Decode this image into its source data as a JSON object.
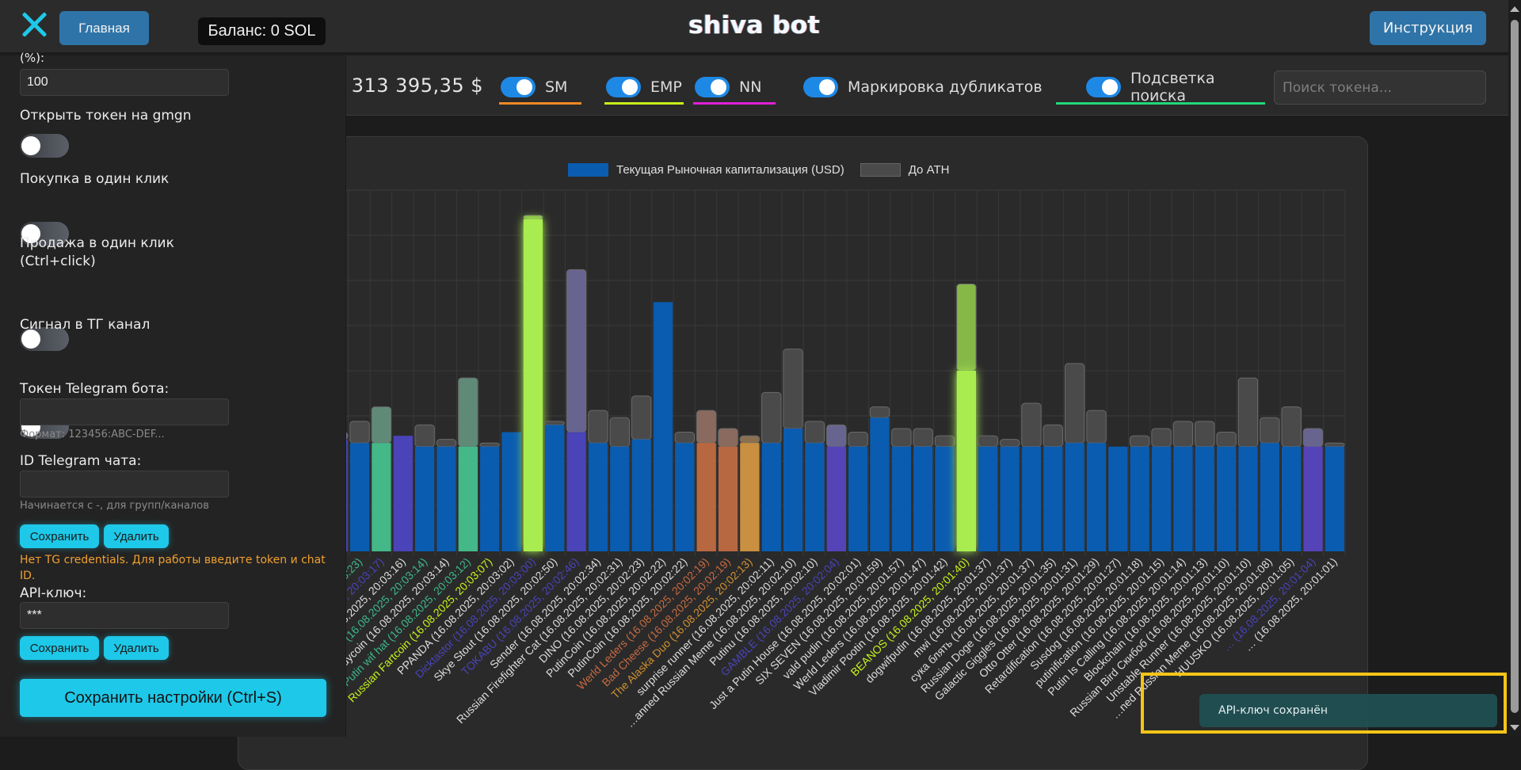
{
  "header": {
    "title": "shiva bot",
    "home_label": "Главная",
    "balance": "Баланс: 0 SOL",
    "instructions_label": "Инструкция"
  },
  "filters": {
    "market_cap_text": ": 313 395,35 $",
    "toggles": [
      {
        "label": "SM",
        "on": true,
        "underline": "#f08a24"
      },
      {
        "label": "EMP",
        "on": true,
        "underline": "#c6f21a"
      },
      {
        "label": "NN",
        "on": true,
        "underline": "#e020d8"
      },
      {
        "label": "Маркировка дубликатов",
        "on": true,
        "underline": ""
      },
      {
        "label": "Подсветка поиска",
        "on": true,
        "underline": "#22d87a"
      }
    ],
    "search_placeholder": "Поиск токена...",
    "search_value": ""
  },
  "sidebar": {
    "cut_label": "(%):",
    "percent_value": "100",
    "open_gmgn_label": "Открыть токен на gmgn",
    "open_gmgn_on": false,
    "one_click_buy_label": "Покупка в один клик",
    "one_click_buy_on": false,
    "one_click_sell_label": "Продажа в один клик",
    "one_click_sell_label2": "(Ctrl+click)",
    "one_click_sell_on": false,
    "tg_signal_label": "Сигнал в ТГ канал",
    "tg_signal_on": false,
    "tg_token_label": "Токен Telegram бота:",
    "tg_token_value": "",
    "tg_token_hint": "Формат: 123456:ABC-DEF...",
    "tg_chat_label": "ID Telegram чата:",
    "tg_chat_value": "",
    "tg_chat_hint": "Начинается с -, для групп/каналов",
    "save_label": "Сохранить",
    "delete_label": "Удалить",
    "tg_warning": "Нет TG credentials. Для работы введите token и chat ID.",
    "api_key_label": "API-ключ:",
    "api_key_value": "***",
    "save_settings_label": "Сохранить настройки (Ctrl+S)"
  },
  "toast": {
    "message": "API-ключ сохранён"
  },
  "colors": {
    "accent_cyan": "#1ec8e8",
    "button_blue": "#2f74a8",
    "bar_default": "#0a5cb0",
    "ath": "#4a4a4a",
    "highlight_frame": "#f5c518"
  },
  "chart_data": {
    "type": "bar",
    "stacked": true,
    "title": "",
    "xlabel": "",
    "ylabel": "",
    "y_axis_labels_visible": false,
    "grid": true,
    "legend_position": "top-center",
    "legend": [
      {
        "name": "Текущая Рыночная капитализация (USD)",
        "color": "#0a5cb0"
      },
      {
        "name": "До ATH",
        "color": "#4a4a4a"
      }
    ],
    "ylim": [
      0,
      100
    ],
    "units": "relative (no y-axis ticks shown)",
    "categories": [
      {
        "label": "…:23)",
        "mc": 31,
        "ath": 2,
        "color": "#4a44b8",
        "label_color": "#dddddd"
      },
      {
        "label": "… (16.08.2025, 20:03:23)",
        "mc": 30,
        "ath": 6,
        "color": "#0a5cb0",
        "label_color": "#3db88a"
      },
      {
        "label": "… (16.08.2025, 20:03:17)",
        "mc": 30,
        "ath": 10,
        "color": "#44b888",
        "label_color": "#4a44b8"
      },
      {
        "label": "…uing (16.08.2025, 20:03:16)",
        "mc": 32,
        "ath": 0,
        "color": "#4a44b8",
        "label_color": "#dddddd"
      },
      {
        "label": "… Fartcoin (16.08.2025, 20:03:14)",
        "mc": 29,
        "ath": 6,
        "color": "#0a5cb0",
        "label_color": "#3db88a"
      },
      {
        "label": "daddycoin (16.08.2025, 20:03:14)",
        "mc": 29,
        "ath": 2,
        "color": "#0a5cb0",
        "label_color": "#dddddd"
      },
      {
        "label": "Putin wif hat (16.08.2025, 20:03:12)",
        "mc": 29,
        "ath": 19,
        "color": "#44b888",
        "label_color": "#3db88a"
      },
      {
        "label": "Russian Fartcoin (16.08.2025, 20:03:07)",
        "mc": 29,
        "ath": 1,
        "color": "#0a5cb0",
        "label_color": "#c6f21a"
      },
      {
        "label": "PPANDA (16.08.2025, 20:03:02)",
        "mc": 33,
        "ath": 0,
        "color": "#0a5cb0",
        "label_color": "#dddddd"
      },
      {
        "label": "Dicktastor (16.08.2025, 20:03:00)",
        "mc": 92,
        "ath": 1,
        "color": "#a8ec50",
        "label_color": "#4a44b8"
      },
      {
        "label": "Skye Stout (16.08.2025, 20:02:50)",
        "mc": 35,
        "ath": 1,
        "color": "#0a5cb0",
        "label_color": "#dddddd"
      },
      {
        "label": "TOKABU (16.08.2025, 20:02:46)",
        "mc": 33,
        "ath": 45,
        "color": "#4a44b8",
        "label_color": "#4a44b8"
      },
      {
        "label": "Sender (16.08.2025, 20:02:34)",
        "mc": 30,
        "ath": 9,
        "color": "#0a5cb0",
        "label_color": "#dddddd"
      },
      {
        "label": "Russian Firefighter Cat (16.08.2025, 20:02:31)",
        "mc": 29,
        "ath": 8,
        "color": "#0a5cb0",
        "label_color": "#dddddd"
      },
      {
        "label": "DINO (16.08.2025, 20:02:23)",
        "mc": 31,
        "ath": 12,
        "color": "#0a5cb0",
        "label_color": "#dddddd"
      },
      {
        "label": "PutinCoin (16.08.2025, 20:02:22)",
        "mc": 69,
        "ath": 0,
        "color": "#0a5cb0",
        "label_color": "#dddddd"
      },
      {
        "label": "PutinCoin (16.08.2025, 20:02:22)",
        "mc": 30,
        "ath": 3,
        "color": "#0a5cb0",
        "label_color": "#dddddd"
      },
      {
        "label": "Werld Leders (16.08.2025, 20:02:19)",
        "mc": 30,
        "ath": 9,
        "color": "#b86840",
        "label_color": "#c86a40"
      },
      {
        "label": "Bad Cheese (16.08.2025, 20:02:19)",
        "mc": 29,
        "ath": 5,
        "color": "#b86840",
        "label_color": "#c86a40"
      },
      {
        "label": "The Alaska Duo (16.08.2025, 20:02:13)",
        "mc": 30,
        "ath": 2,
        "color": "#c89040",
        "label_color": "#d09030"
      },
      {
        "label": "surprise runner (16.08.2025, 20:02:11)",
        "mc": 30,
        "ath": 14,
        "color": "#0a5cb0",
        "label_color": "#dddddd"
      },
      {
        "label": "…anned Russian Meme (16.08.2025, 20:02:10)",
        "mc": 34,
        "ath": 22,
        "color": "#0a5cb0",
        "label_color": "#dddddd"
      },
      {
        "label": "Putinu (16.08.2025, 20:02:10)",
        "mc": 30,
        "ath": 6,
        "color": "#0a5cb0",
        "label_color": "#dddddd"
      },
      {
        "label": "GAMBLE (16.08.2025, 20:02:04)",
        "mc": 29,
        "ath": 6,
        "color": "#5544b8",
        "label_color": "#4a44b8"
      },
      {
        "label": "Just a Putin House (16.08.2025, 20:02:01)",
        "mc": 29,
        "ath": 4,
        "color": "#0a5cb0",
        "label_color": "#dddddd"
      },
      {
        "label": "SIX SEVEN (16.08.2025, 20:01:59)",
        "mc": 37,
        "ath": 3,
        "color": "#0a5cb0",
        "label_color": "#dddddd"
      },
      {
        "label": "vald pudin (16.08.2025, 20:01:57)",
        "mc": 29,
        "ath": 5,
        "color": "#0a5cb0",
        "label_color": "#dddddd"
      },
      {
        "label": "Werld Leders (16.08.2025, 20:01:47)",
        "mc": 29,
        "ath": 5,
        "color": "#0a5cb0",
        "label_color": "#dddddd"
      },
      {
        "label": "Vladimir Pootin (16.08.2025, 20:01:42)",
        "mc": 29,
        "ath": 3,
        "color": "#0a5cb0",
        "label_color": "#dddddd"
      },
      {
        "label": "BEANOS (16.08.2025, 20:01:40)",
        "mc": 50,
        "ath": 24,
        "color": "#a8ec50",
        "label_color": "#c6f21a"
      },
      {
        "label": "dogwifputin (16.08.2025, 20:01:37)",
        "mc": 29,
        "ath": 3,
        "color": "#0a5cb0",
        "label_color": "#dddddd"
      },
      {
        "label": "mwi (16.08.2025, 20:01:37)",
        "mc": 29,
        "ath": 2,
        "color": "#0a5cb0",
        "label_color": "#dddddd"
      },
      {
        "label": "сука блять (16.08.2025, 20:01:37)",
        "mc": 29,
        "ath": 12,
        "color": "#0a5cb0",
        "label_color": "#dddddd"
      },
      {
        "label": "Russian Doge (16.08.2025, 20:01:35)",
        "mc": 29,
        "ath": 6,
        "color": "#0a5cb0",
        "label_color": "#dddddd"
      },
      {
        "label": "Galactic Giggles (16.08.2025, 20:01:31)",
        "mc": 30,
        "ath": 22,
        "color": "#0a5cb0",
        "label_color": "#dddddd"
      },
      {
        "label": "Otto Otter (16.08.2025, 20:01:29)",
        "mc": 30,
        "ath": 9,
        "color": "#0a5cb0",
        "label_color": "#dddddd"
      },
      {
        "label": "Retardification (16.08.2025, 20:01:27)",
        "mc": 29,
        "ath": 0,
        "color": "#0a5cb0",
        "label_color": "#dddddd"
      },
      {
        "label": "Susdog (16.08.2025, 20:01:18)",
        "mc": 29,
        "ath": 3,
        "color": "#0a5cb0",
        "label_color": "#dddddd"
      },
      {
        "label": "putinification (16.08.2025, 20:01:15)",
        "mc": 29,
        "ath": 5,
        "color": "#0a5cb0",
        "label_color": "#dddddd"
      },
      {
        "label": "Putin Is Calling (16.08.2025, 20:01:14)",
        "mc": 29,
        "ath": 7,
        "color": "#0a5cb0",
        "label_color": "#dddddd"
      },
      {
        "label": "Blockchain (16.08.2025, 20:01:13)",
        "mc": 29,
        "ath": 7,
        "color": "#0a5cb0",
        "label_color": "#dddddd"
      },
      {
        "label": "Russian Bird Скибоб (16.08.2025, 20:01:10)",
        "mc": 29,
        "ath": 4,
        "color": "#0a5cb0",
        "label_color": "#dddddd"
      },
      {
        "label": "Unstable Runner (16.08.2025, 20:01:10)",
        "mc": 29,
        "ath": 19,
        "color": "#0a5cb0",
        "label_color": "#dddddd"
      },
      {
        "label": "…ned Russian Meme (16.08.2025, 20:01:08)",
        "mc": 30,
        "ath": 7,
        "color": "#0a5cb0",
        "label_color": "#dddddd"
      },
      {
        "label": "HUUSKO (16.08.2025, 20:01:05)",
        "mc": 29,
        "ath": 11,
        "color": "#0a5cb0",
        "label_color": "#dddddd"
      },
      {
        "label": "… (16.08.2025, 20:01:04)",
        "mc": 29,
        "ath": 5,
        "color": "#5544b8",
        "label_color": "#4a44b8"
      },
      {
        "label": "… (16.08.2025, 20:01:01)",
        "mc": 29,
        "ath": 1,
        "color": "#0a5cb0",
        "label_color": "#dddddd"
      }
    ]
  }
}
